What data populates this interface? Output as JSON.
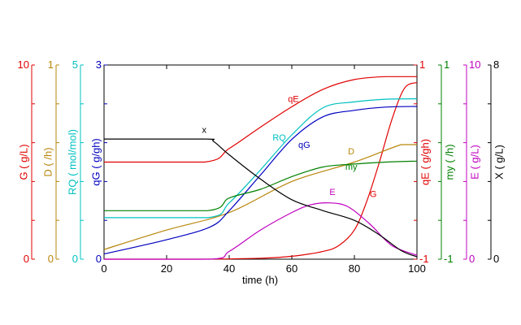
{
  "chart_data": {
    "type": "line",
    "xlabel": "time (h)",
    "xlim": [
      0,
      100
    ],
    "x_ticks": [
      "0",
      "20",
      "40",
      "60",
      "80",
      "100"
    ],
    "y_axes": [
      {
        "key": "G",
        "label": "G ( g/L)",
        "color": "#e00000",
        "side": "left",
        "min": 0,
        "max": 10,
        "min_label": "0",
        "max_label": "10"
      },
      {
        "key": "D",
        "label": "D ( /h)",
        "color": "#b8860b",
        "side": "left",
        "min": 0,
        "max": 1,
        "min_label": "0",
        "max_label": "1"
      },
      {
        "key": "RQ",
        "label": "RQ ( mol/mol)",
        "color": "#00c0c0",
        "side": "left",
        "min": 0,
        "max": 5,
        "min_label": "0",
        "max_label": "5"
      },
      {
        "key": "qG",
        "label": "qG ( g/gh)",
        "color": "#0000c0",
        "side": "left",
        "min": 0,
        "max": 3,
        "min_label": "0",
        "max_label": "3"
      },
      {
        "key": "qE",
        "label": "qE ( g/gh)",
        "color": "#e00000",
        "side": "right",
        "min": -1,
        "max": 1,
        "min_label": "-1",
        "max_label": "1"
      },
      {
        "key": "my",
        "label": "my ( /h)",
        "color": "#008000",
        "side": "right",
        "min": -1,
        "max": 1,
        "min_label": "-1",
        "max_label": "1"
      },
      {
        "key": "E",
        "label": "E ( g/L)",
        "color": "#c000c0",
        "side": "right",
        "min": 0,
        "max": 10,
        "min_label": "0",
        "max_label": "10"
      },
      {
        "key": "X",
        "label": "X ( g/L)",
        "color": "#000000",
        "side": "right",
        "min": 0,
        "max": 8,
        "min_label": "0",
        "max_label": "8"
      }
    ],
    "series": [
      {
        "name": "G",
        "color": "#e00000",
        "axis": "G",
        "x": [
          0,
          30,
          50,
          60,
          70,
          75,
          80,
          84,
          88,
          92,
          96,
          100
        ],
        "y": [
          0,
          0,
          0.05,
          0.15,
          0.4,
          0.7,
          1.5,
          3.0,
          5.0,
          7.2,
          8.8,
          9.1
        ]
      },
      {
        "name": "D",
        "color": "#b8860b",
        "axis": "D",
        "x": [
          0,
          20,
          40,
          60,
          80,
          95,
          100
        ],
        "y": [
          0.05,
          0.15,
          0.24,
          0.4,
          0.5,
          0.59,
          0.59
        ]
      },
      {
        "name": "RQ",
        "color": "#00c0c0",
        "axis": "RQ",
        "x": [
          0,
          33,
          40,
          50,
          60,
          70,
          80,
          90,
          100
        ],
        "y": [
          1.07,
          1.07,
          1.45,
          2.3,
          3.2,
          3.9,
          4.05,
          4.12,
          4.13
        ]
      },
      {
        "name": "qG",
        "color": "#0000c0",
        "axis": "qG",
        "x": [
          0,
          20,
          34,
          40,
          50,
          60,
          70,
          80,
          90,
          100
        ],
        "y": [
          0.08,
          0.3,
          0.5,
          0.75,
          1.3,
          1.85,
          2.2,
          2.3,
          2.35,
          2.36
        ]
      },
      {
        "name": "qE",
        "color": "#e00000",
        "axis": "qE",
        "x": [
          0,
          32,
          40,
          50,
          60,
          70,
          80,
          90,
          100
        ],
        "y": [
          0.0,
          0.0,
          0.14,
          0.36,
          0.57,
          0.75,
          0.85,
          0.88,
          0.88
        ]
      },
      {
        "name": "my",
        "color": "#008000",
        "axis": "my",
        "x": [
          0,
          33,
          40,
          50,
          60,
          70,
          80,
          90,
          100
        ],
        "y": [
          -0.5,
          -0.5,
          -0.37,
          -0.28,
          -0.15,
          -0.05,
          -0.02,
          0.0,
          0.01
        ]
      },
      {
        "name": "E",
        "color": "#c000c0",
        "axis": "E",
        "x": [
          0,
          34,
          40,
          50,
          60,
          66,
          72,
          78,
          85,
          92,
          100
        ],
        "y": [
          0,
          0,
          0.4,
          1.5,
          2.4,
          2.8,
          2.9,
          2.7,
          1.8,
          0.7,
          0.2
        ]
      },
      {
        "name": "X",
        "color": "#000000",
        "axis": "X",
        "x": [
          0,
          32,
          35,
          40,
          50,
          60,
          70,
          80,
          88,
          95,
          100
        ],
        "y": [
          4.95,
          4.95,
          4.85,
          4.3,
          3.3,
          2.45,
          2.0,
          1.6,
          1.0,
          0.35,
          0.1
        ]
      }
    ],
    "annotations": [
      {
        "text": "qE",
        "x": 60.5,
        "y": 0.62,
        "axis": "qE",
        "color": "#e00000"
      },
      {
        "text": "x",
        "x": 32,
        "y": 5.2,
        "axis": "X",
        "color": "#000000"
      },
      {
        "text": "RQ",
        "x": 56,
        "y": 3.05,
        "axis": "RQ",
        "color": "#00c0c0"
      },
      {
        "text": "qG",
        "x": 64,
        "y": 1.72,
        "axis": "qG",
        "color": "#0000c0"
      },
      {
        "text": "D",
        "x": 79,
        "y": 0.54,
        "axis": "D",
        "color": "#b8860b"
      },
      {
        "text": "my",
        "x": 79,
        "y": -0.08,
        "axis": "my",
        "color": "#008000"
      },
      {
        "text": "E",
        "x": 73,
        "y": 3.3,
        "axis": "E",
        "color": "#c000c0"
      },
      {
        "text": "G",
        "x": 86,
        "y": 3.2,
        "axis": "G",
        "color": "#e00000"
      }
    ]
  }
}
